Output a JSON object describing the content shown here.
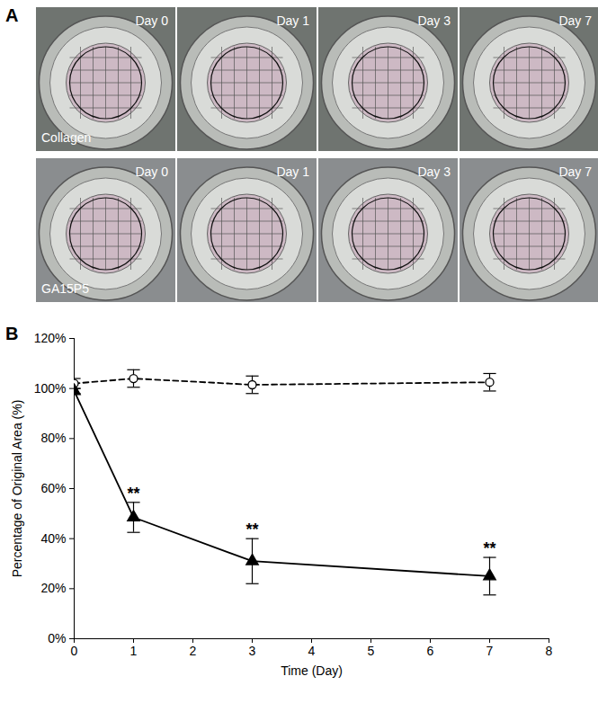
{
  "panel_a": {
    "label": "A",
    "rows": [
      {
        "name": "Collagen",
        "days": [
          "Day 0",
          "Day 1",
          "Day 3",
          "Day 7"
        ]
      },
      {
        "name": "GA15P5",
        "days": [
          "Day 0",
          "Day 1",
          "Day 3",
          "Day 7"
        ]
      }
    ]
  },
  "panel_b": {
    "label": "B"
  },
  "chart_data": {
    "type": "line",
    "x_label": "Time (Day)",
    "y_label": "Percentage of Original Area (%)",
    "x": [
      0,
      1,
      3,
      7
    ],
    "series": [
      {
        "color": "#000000",
        "line_style": "dashed",
        "marker": "circle-open",
        "values": [
          102,
          104,
          101.5,
          102.5
        ],
        "errors": [
          2,
          3.5,
          3.5,
          3.5
        ]
      },
      {
        "color": "#000000",
        "line_style": "solid",
        "marker": "triangle",
        "values": [
          99,
          48.5,
          31,
          25
        ],
        "errors": [
          1,
          6,
          9,
          7.5
        ],
        "significance": [
          null,
          "**",
          "**",
          "**"
        ]
      }
    ],
    "xlim": [
      0,
      8
    ],
    "xticks": [
      0,
      1,
      2,
      3,
      4,
      5,
      6,
      7,
      8
    ],
    "ylim": [
      0,
      120
    ],
    "yticks": [
      {
        "value": 0,
        "label": "0%"
      },
      {
        "value": 20,
        "label": "20%"
      },
      {
        "value": 40,
        "label": "40%"
      },
      {
        "value": 60,
        "label": "60%"
      },
      {
        "value": 80,
        "label": "80%"
      },
      {
        "value": 100,
        "label": "100%"
      },
      {
        "value": 120,
        "label": "120%"
      }
    ],
    "grid": false
  }
}
